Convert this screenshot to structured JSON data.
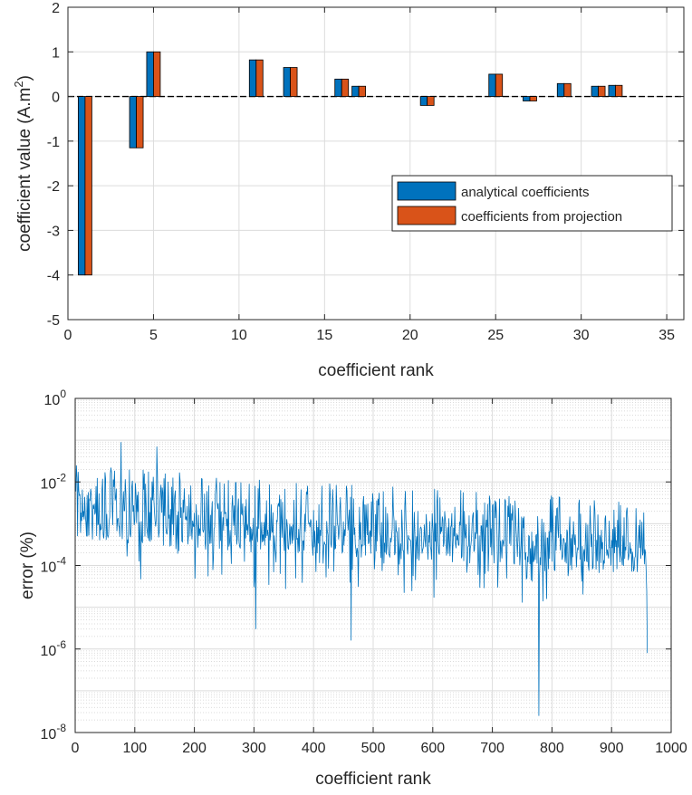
{
  "colors": {
    "series1": "#0072BD",
    "series2": "#D95319",
    "line": "#0072BD",
    "grid": "#dcdcdc",
    "axis": "#262626"
  },
  "chart_data": [
    {
      "type": "bar",
      "title": "",
      "xlabel": "coefficient rank",
      "ylabel": "coefficient value (A.m",
      "ylabel_sup": "2",
      "ylabel_close": ")",
      "xlim": [
        0,
        36
      ],
      "ylim": [
        -5,
        2
      ],
      "xticks": [
        0,
        5,
        10,
        15,
        20,
        25,
        30,
        35
      ],
      "yticks": [
        2,
        1,
        0,
        -1,
        -2,
        -3,
        -4,
        -5
      ],
      "grid": true,
      "legend_position": "right",
      "x": [
        1,
        4,
        5,
        11,
        13,
        16,
        17,
        21,
        25,
        27,
        29,
        31,
        32
      ],
      "series": [
        {
          "name": "analytical coefficients",
          "values": [
            -4.0,
            -1.15,
            1.0,
            0.82,
            0.65,
            0.39,
            0.23,
            -0.2,
            0.5,
            -0.1,
            0.29,
            0.23,
            0.25
          ]
        },
        {
          "name": "coefficients from projection",
          "values": [
            -4.0,
            -1.15,
            1.0,
            0.82,
            0.65,
            0.39,
            0.23,
            -0.2,
            0.5,
            -0.1,
            0.29,
            0.23,
            0.25
          ]
        }
      ]
    },
    {
      "type": "line",
      "title": "",
      "xlabel": "coefficient rank",
      "ylabel": "error (%)",
      "xlim": [
        0,
        1000
      ],
      "xticks": [
        0,
        100,
        200,
        300,
        400,
        500,
        600,
        700,
        800,
        900,
        1000
      ],
      "yscale": "log",
      "ylim": [
        1e-08,
        1
      ],
      "ytick_exponents": [
        0,
        -2,
        -4,
        -6,
        -8
      ],
      "ytick_base": "10",
      "grid": true,
      "n_points": 960,
      "envelope_log10": [
        {
          "x": 1,
          "max": -1.6,
          "min": -3.9
        },
        {
          "x": 100,
          "max": -1.3,
          "min": -4.4
        },
        {
          "x": 200,
          "max": -1.8,
          "min": -4.6
        },
        {
          "x": 300,
          "max": -1.9,
          "min": -5.5
        },
        {
          "x": 400,
          "max": -2.0,
          "min": -5.2
        },
        {
          "x": 500,
          "max": -2.0,
          "min": -5.0
        },
        {
          "x": 600,
          "max": -2.1,
          "min": -5.0
        },
        {
          "x": 700,
          "max": -2.2,
          "min": -4.8
        },
        {
          "x": 778,
          "max": -2.3,
          "min": -7.6
        },
        {
          "x": 800,
          "max": -2.3,
          "min": -4.8
        },
        {
          "x": 900,
          "max": -2.4,
          "min": -4.9
        },
        {
          "x": 960,
          "max": -2.5,
          "min": -6.1
        }
      ],
      "notable_points": [
        {
          "x": 77,
          "y": 0.09
        },
        {
          "x": 137,
          "y": 0.07
        },
        {
          "x": 303,
          "y": 3e-06
        },
        {
          "x": 463,
          "y": 1.6e-06
        },
        {
          "x": 778,
          "y": 2.5e-08
        },
        {
          "x": 960,
          "y": 8e-07
        }
      ]
    }
  ]
}
